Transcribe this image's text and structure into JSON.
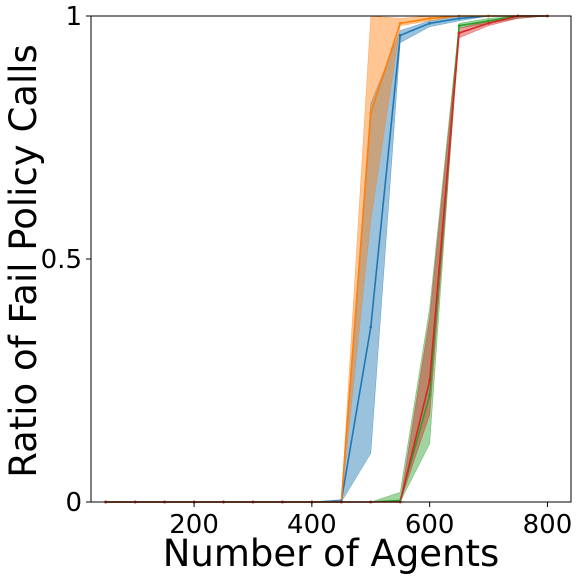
{
  "chart_data": {
    "type": "line",
    "xlabel": "Number of Agents",
    "ylabel": "Ratio of Fail Policy Calls",
    "xlim": [
      25,
      840
    ],
    "ylim": [
      0,
      1
    ],
    "x_ticks": [
      200,
      400,
      600,
      800
    ],
    "x_tick_labels": [
      "200",
      "400",
      "600",
      "800"
    ],
    "y_ticks": [
      0,
      0.5,
      1
    ],
    "y_tick_labels": [
      "0",
      "0.5",
      "1"
    ],
    "grid": false,
    "legend": "none",
    "x": [
      50,
      100,
      150,
      200,
      250,
      300,
      350,
      400,
      450,
      500,
      550,
      600,
      650,
      700,
      750,
      800
    ],
    "series": [
      {
        "color": "#1f77b4",
        "band_color": "#1f77b4",
        "values": [
          0,
          0,
          0,
          0,
          0,
          0,
          0,
          0,
          0.002,
          0.36,
          0.96,
          0.985,
          0.995,
          1,
          1,
          1
        ],
        "lower": [
          0,
          0,
          0,
          0,
          0,
          0,
          0,
          0,
          0,
          0.1,
          0.945,
          0.978,
          0.99,
          1,
          1,
          1
        ],
        "upper": [
          0,
          0,
          0,
          0,
          0,
          0,
          0,
          0,
          0.005,
          0.82,
          0.97,
          0.99,
          1,
          1,
          1,
          1
        ]
      },
      {
        "color": "#ff7f0e",
        "band_color": "#ff7f0e",
        "values": [
          0,
          0,
          0,
          0,
          0,
          0,
          0,
          0,
          0,
          0.8,
          0.985,
          0.995,
          1,
          1,
          1,
          1
        ],
        "lower": [
          0,
          0,
          0,
          0,
          0,
          0,
          0,
          0,
          0,
          0.58,
          0.98,
          0.99,
          1,
          1,
          1,
          1
        ],
        "upper": [
          0,
          0,
          0,
          0,
          0,
          0,
          0,
          0,
          0,
          1.0,
          0.995,
          1,
          1,
          1,
          1,
          1
        ]
      },
      {
        "color": "#2ca02c",
        "band_color": "#2ca02c",
        "values": [
          0,
          0,
          0,
          0,
          0,
          0,
          0,
          0,
          0,
          0,
          0.003,
          0.22,
          0.98,
          0.99,
          1,
          1
        ],
        "lower": [
          0,
          0,
          0,
          0,
          0,
          0,
          0,
          0,
          0,
          0,
          0,
          0.12,
          0.975,
          0.985,
          0.995,
          1
        ],
        "upper": [
          0,
          0,
          0,
          0,
          0,
          0,
          0,
          0,
          0,
          0,
          0.02,
          0.4,
          0.985,
          0.995,
          1,
          1
        ]
      },
      {
        "color": "#d62728",
        "band_color": "#d62728",
        "values": [
          0,
          0,
          0,
          0,
          0,
          0,
          0,
          0,
          0,
          0,
          0,
          0.25,
          0.965,
          0.985,
          1,
          1
        ],
        "lower": [
          0,
          0,
          0,
          0,
          0,
          0,
          0,
          0,
          0,
          0,
          0,
          0.18,
          0.955,
          0.98,
          0.995,
          1
        ],
        "upper": [
          0,
          0,
          0,
          0,
          0,
          0,
          0,
          0,
          0,
          0,
          0,
          0.38,
          0.975,
          0.99,
          1,
          1
        ]
      }
    ]
  }
}
